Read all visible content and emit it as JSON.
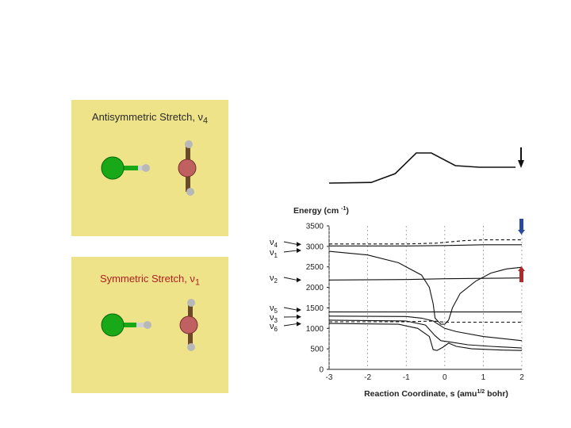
{
  "panels": [
    {
      "title": "Antisymmetric Stretch, ν",
      "subscript": "4"
    },
    {
      "title": "Symmetric Stretch, ν",
      "subscript": "1"
    }
  ],
  "colors": {
    "panel_bg": "#efe38a",
    "chlorine": "#18a818",
    "carbon": "#c06060",
    "hydrogen": "#b8b8b8",
    "bond": "#6b4a2a",
    "marker_blue": "#2a4aa0",
    "marker_red": "#b02a2a"
  },
  "chart_data": {
    "type": "line",
    "ylabel": "Energy (cm",
    "ylabel_sup": "-1",
    "ylabel_end": ")",
    "xlabel": "Reaction Coordinate, s (amu",
    "xlabel_sup": "1/2",
    "xlabel_end": " bohr)",
    "xlim": [
      -3,
      2
    ],
    "ylim": [
      0,
      3500
    ],
    "xticks": [
      "-3",
      "-2",
      "-1",
      "0",
      "1",
      "2"
    ],
    "yticks": [
      "0",
      "500",
      "1000",
      "1500",
      "2000",
      "2500",
      "3000",
      "3500"
    ],
    "mode_labels": [
      {
        "label": "ν",
        "sub": "4",
        "y": 3050
      },
      {
        "label": "ν",
        "sub": "1",
        "y": 2900
      },
      {
        "label": "ν",
        "sub": "2",
        "y": 2180
      },
      {
        "label": "ν",
        "sub": "5",
        "y": 1450
      },
      {
        "label": "ν",
        "sub": "3",
        "y": 1280
      },
      {
        "label": "ν",
        "sub": "6",
        "y": 1110
      }
    ],
    "series": [
      {
        "style": "dashed",
        "points": [
          [
            -3,
            3060
          ],
          [
            -1,
            3060
          ],
          [
            -0.2,
            3080
          ],
          [
            0.5,
            3140
          ],
          [
            1,
            3160
          ],
          [
            2,
            3160
          ]
        ]
      },
      {
        "style": "solid",
        "points": [
          [
            -3,
            3010
          ],
          [
            -1,
            3010
          ],
          [
            0,
            3020
          ],
          [
            1,
            3040
          ],
          [
            2,
            3040
          ]
        ]
      },
      {
        "style": "solid",
        "points": [
          [
            -3,
            2880
          ],
          [
            -2,
            2790
          ],
          [
            -1.2,
            2600
          ],
          [
            -0.6,
            2300
          ],
          [
            -0.4,
            2000
          ],
          [
            -0.3,
            1600
          ],
          [
            -0.25,
            1250
          ],
          [
            -0.1,
            1100
          ],
          [
            0,
            1100
          ],
          [
            0.1,
            1200
          ],
          [
            0.2,
            1500
          ],
          [
            0.4,
            1850
          ],
          [
            0.8,
            2150
          ],
          [
            1.2,
            2350
          ],
          [
            1.6,
            2450
          ],
          [
            2,
            2490
          ]
        ]
      },
      {
        "style": "solid",
        "points": [
          [
            -3,
            2180
          ],
          [
            -1,
            2190
          ],
          [
            0,
            2210
          ],
          [
            1,
            2220
          ],
          [
            2,
            2230
          ]
        ]
      },
      {
        "style": "solid",
        "points": [
          [
            -3,
            1400
          ],
          [
            -1,
            1400
          ],
          [
            0,
            1400
          ],
          [
            1,
            1400
          ],
          [
            2,
            1400
          ]
        ]
      },
      {
        "style": "solid",
        "points": [
          [
            -3,
            1300
          ],
          [
            -1,
            1290
          ],
          [
            -0.6,
            1250
          ],
          [
            -0.3,
            1180
          ],
          [
            0,
            1000
          ],
          [
            0.3,
            920
          ],
          [
            1,
            800
          ],
          [
            2,
            700
          ]
        ]
      },
      {
        "style": "dashed",
        "points": [
          [
            -3,
            1160
          ],
          [
            -1,
            1160
          ],
          [
            -0.3,
            1180
          ],
          [
            0,
            1150
          ],
          [
            0.5,
            1150
          ],
          [
            1,
            1150
          ],
          [
            2,
            1150
          ]
        ]
      },
      {
        "style": "solid",
        "points": [
          [
            -3,
            1120
          ],
          [
            -1.2,
            1100
          ],
          [
            -0.7,
            1000
          ],
          [
            -0.4,
            800
          ],
          [
            -0.3,
            480
          ],
          [
            -0.2,
            460
          ],
          [
            -0.05,
            540
          ],
          [
            0.1,
            640
          ],
          [
            0.3,
            560
          ],
          [
            0.7,
            500
          ],
          [
            1.5,
            470
          ],
          [
            2,
            460
          ]
        ]
      },
      {
        "style": "solid",
        "points": [
          [
            -3,
            1200
          ],
          [
            -1,
            1180
          ],
          [
            -0.5,
            1080
          ],
          [
            -0.25,
            820
          ],
          [
            -0.1,
            700
          ],
          [
            0.2,
            660
          ],
          [
            0.6,
            600
          ],
          [
            1.2,
            560
          ],
          [
            2,
            520
          ]
        ]
      }
    ],
    "inset": {
      "type": "line",
      "points": [
        [
          -1.5,
          0
        ],
        [
          -0.8,
          0.02
        ],
        [
          -0.4,
          0.3
        ],
        [
          -0.05,
          0.95
        ],
        [
          0.2,
          0.95
        ],
        [
          0.6,
          0.55
        ],
        [
          1,
          0.5
        ],
        [
          1.6,
          0.5
        ]
      ]
    }
  }
}
